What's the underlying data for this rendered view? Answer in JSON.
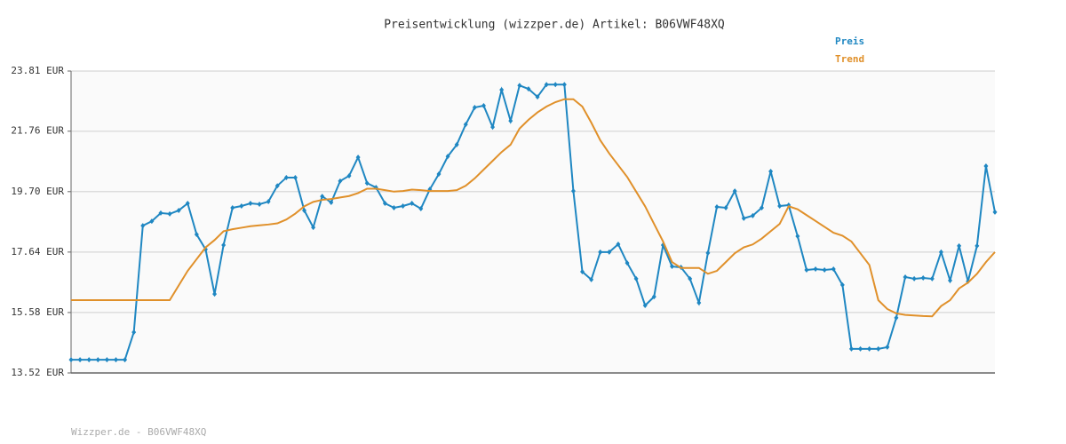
{
  "chart_data": {
    "type": "line",
    "title": "Preisentwicklung (wizzper.de) Artikel: B06VWF48XQ",
    "footer": "Wizzper.de - B06VWF48XQ",
    "ylim": [
      13.52,
      23.81
    ],
    "yticks": [
      {
        "value": 13.52,
        "label": "13.52 EUR"
      },
      {
        "value": 15.58,
        "label": "15.58 EUR"
      },
      {
        "value": 17.64,
        "label": "17.64 EUR"
      },
      {
        "value": 19.7,
        "label": "19.70 EUR"
      },
      {
        "value": 21.76,
        "label": "21.76 EUR"
      },
      {
        "value": 23.81,
        "label": "23.81 EUR"
      }
    ],
    "grid": true,
    "legend": "top-right",
    "series": [
      {
        "name": "Preis",
        "color": "#1f87c2",
        "markers": true,
        "values": [
          13.97,
          13.97,
          13.97,
          13.97,
          13.97,
          13.97,
          13.97,
          14.91,
          18.54,
          18.69,
          18.97,
          18.94,
          19.06,
          19.3,
          18.24,
          17.73,
          16.21,
          17.88,
          19.15,
          19.21,
          19.3,
          19.27,
          19.36,
          19.9,
          20.18,
          20.18,
          19.06,
          18.48,
          19.54,
          19.33,
          20.06,
          20.24,
          20.87,
          19.99,
          19.84,
          19.3,
          19.15,
          19.21,
          19.3,
          19.12,
          19.78,
          20.3,
          20.9,
          21.3,
          21.99,
          22.57,
          22.63,
          21.9,
          23.17,
          22.11,
          23.32,
          23.2,
          22.93,
          23.35,
          23.35,
          23.35,
          19.72,
          16.97,
          16.7,
          17.64,
          17.64,
          17.91,
          17.27,
          16.73,
          15.82,
          16.12,
          17.88,
          17.15,
          17.12,
          16.73,
          15.91,
          17.61,
          19.18,
          19.15,
          19.72,
          18.79,
          18.88,
          19.15,
          20.39,
          19.21,
          19.24,
          18.18,
          17.03,
          17.06,
          17.03,
          17.06,
          16.52,
          14.34,
          14.34,
          14.34,
          14.34,
          14.4,
          15.4,
          16.79,
          16.73,
          16.76,
          16.73,
          17.64,
          16.67,
          17.85,
          16.64,
          17.85,
          20.57,
          19.0
        ]
      },
      {
        "name": "Trend",
        "color": "#e0902a",
        "markers": false,
        "values": [
          16.0,
          16.0,
          16.0,
          16.0,
          16.0,
          16.0,
          16.0,
          16.0,
          16.0,
          16.0,
          16.0,
          16.0,
          16.5,
          17.0,
          17.4,
          17.8,
          18.05,
          18.35,
          18.42,
          18.47,
          18.52,
          18.55,
          18.58,
          18.62,
          18.75,
          18.95,
          19.2,
          19.35,
          19.42,
          19.45,
          19.5,
          19.55,
          19.65,
          19.8,
          19.8,
          19.75,
          19.7,
          19.72,
          19.77,
          19.75,
          19.72,
          19.72,
          19.72,
          19.75,
          19.9,
          20.15,
          20.45,
          20.75,
          21.05,
          21.3,
          21.85,
          22.15,
          22.4,
          22.6,
          22.75,
          22.85,
          22.85,
          22.6,
          22.05,
          21.45,
          21.0,
          20.6,
          20.2,
          19.7,
          19.2,
          18.6,
          18.0,
          17.3,
          17.1,
          17.1,
          17.1,
          16.9,
          17.0,
          17.3,
          17.6,
          17.8,
          17.9,
          18.1,
          18.35,
          18.6,
          19.2,
          19.1,
          18.9,
          18.7,
          18.5,
          18.3,
          18.2,
          18.0,
          17.6,
          17.2,
          16.0,
          15.7,
          15.55,
          15.5,
          15.48,
          15.46,
          15.45,
          15.8,
          16.0,
          16.4,
          16.6,
          16.9,
          17.3,
          17.64
        ]
      }
    ]
  }
}
